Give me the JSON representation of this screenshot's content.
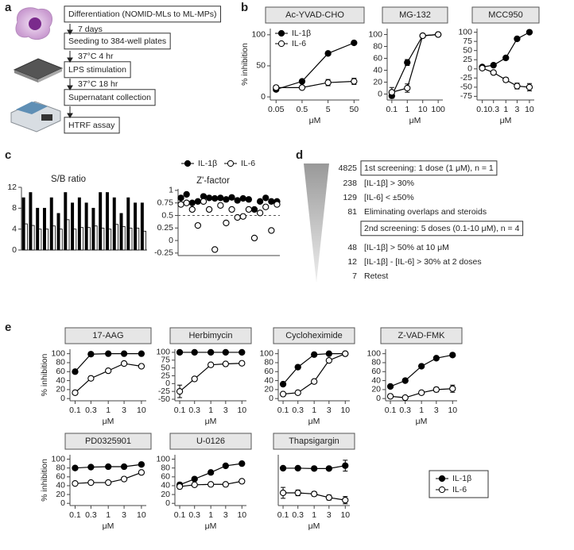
{
  "panel_labels": [
    "a",
    "b",
    "c",
    "d",
    "e"
  ],
  "workflow": {
    "steps": [
      "Differentiation (NOMID-MLs to ML-MPs)",
      "Seeding to 384-well plates",
      "LPS stimulation",
      "Supernatant collection",
      "HTRF assay"
    ],
    "transitions": [
      "7 days",
      "37°C 4 hr",
      "37°C 18 hr"
    ]
  },
  "funnel": {
    "rows": [
      {
        "count": 4825,
        "text": "1st screening: 1 dose (1 μM), n = 1",
        "boxed": true
      },
      {
        "count": 238,
        "text": "[IL-1β] > 30%"
      },
      {
        "count": 129,
        "text": "[IL-6] < ±50%"
      },
      {
        "count": 81,
        "text": "Eliminating overlaps and steroids"
      },
      {
        "text": "2nd screening: 5 doses (0.1-10 μM), n = 4",
        "boxed": true
      },
      {
        "count": 48,
        "text": "[IL-1β] > 50% at 10 μM"
      },
      {
        "count": 12,
        "text": "[IL-1β] - [IL-6] > 30% at 2 doses"
      },
      {
        "count": 7,
        "text": "Retest"
      }
    ]
  },
  "chart_data": [
    {
      "type": "line",
      "title": "Ac-YVAD-CHO",
      "title_style": "boxed",
      "xscale": "log",
      "x": [
        0.05,
        0.5,
        5,
        50
      ],
      "xlim": [
        0.03,
        80
      ],
      "xticks": [
        0.05,
        0.5,
        5,
        50
      ],
      "ylim": [
        -5,
        110
      ],
      "yticks": [
        0,
        50,
        100
      ],
      "xlabel": "μM",
      "ylabel": "% inhibition",
      "legend": "upper left",
      "series": [
        {
          "name": "IL-1β",
          "color": "#000000",
          "values": [
            12,
            25,
            70,
            87
          ],
          "errors": [
            3,
            2,
            3,
            2
          ]
        },
        {
          "name": "IL-6",
          "color": "#ffffff",
          "values": [
            15,
            15,
            23,
            25
          ],
          "errors": [
            3,
            3,
            5,
            5
          ]
        }
      ]
    },
    {
      "type": "line",
      "title": "MG-132",
      "title_style": "boxed",
      "xscale": "log",
      "x": [
        0.1,
        1,
        10,
        100
      ],
      "xlim": [
        0.05,
        200
      ],
      "xticks": [
        0.1,
        1,
        10,
        100
      ],
      "ylim": [
        -10,
        110
      ],
      "yticks": [
        0,
        20,
        40,
        60,
        80,
        100
      ],
      "xlabel": "μM",
      "series": [
        {
          "name": "IL-1β",
          "color": "#000000",
          "values": [
            -3,
            53,
            98,
            100
          ],
          "errors": [
            4,
            5,
            2,
            2
          ]
        },
        {
          "name": "IL-6",
          "color": "#ffffff",
          "values": [
            3,
            10,
            98,
            100
          ],
          "errors": [
            8,
            7,
            2,
            2
          ]
        }
      ]
    },
    {
      "type": "line",
      "title": "MCC950",
      "title_style": "boxed",
      "xscale": "log",
      "x": [
        0.1,
        0.3,
        1,
        3,
        10
      ],
      "xlim": [
        0.06,
        16
      ],
      "xticks": [
        0.1,
        0.3,
        1,
        3,
        10
      ],
      "ylim": [
        -85,
        110
      ],
      "yticks": [
        -75,
        -50,
        -25,
        0,
        25,
        50,
        75,
        100
      ],
      "xlabel": "μM",
      "series": [
        {
          "name": "IL-1β",
          "color": "#000000",
          "values": [
            5,
            10,
            30,
            82,
            100
          ],
          "errors": [
            3,
            3,
            5,
            3,
            2
          ]
        },
        {
          "name": "IL-6",
          "color": "#ffffff",
          "values": [
            2,
            -10,
            -30,
            -47,
            -50
          ],
          "errors": [
            3,
            3,
            6,
            8,
            10
          ]
        }
      ]
    },
    {
      "type": "bar",
      "title": "S/B ratio",
      "title_style": "plain",
      "legend": "top",
      "categories": [
        null,
        null,
        null,
        null,
        null,
        null,
        null,
        null,
        null,
        null,
        null,
        null,
        null,
        null,
        null,
        null,
        null,
        null
      ],
      "ylim": [
        0,
        12
      ],
      "yticks": [
        0,
        4,
        8,
        12
      ],
      "series": [
        {
          "name": "IL-1β",
          "color": "#000000",
          "values": [
            10,
            11,
            8,
            8,
            10,
            7,
            11,
            9,
            10,
            9,
            8,
            11,
            11,
            10,
            7,
            10,
            9,
            9
          ]
        },
        {
          "name": "IL-6",
          "color": "#ffffff",
          "values": [
            5,
            4.7,
            4,
            4,
            4.6,
            4,
            5.8,
            4,
            4.3,
            4.3,
            4.6,
            4.2,
            4,
            4.9,
            4.5,
            4.2,
            4.2,
            3.6
          ]
        }
      ]
    },
    {
      "type": "dot",
      "title": "Z'-factor",
      "title_style": "plain",
      "categories": [
        null,
        null,
        null,
        null,
        null,
        null,
        null,
        null,
        null,
        null,
        null,
        null,
        null,
        null,
        null,
        null,
        null,
        null
      ],
      "ylim": [
        -0.3,
        1.03
      ],
      "yticks": [
        1,
        0.75,
        0.5,
        0.25,
        0,
        -0.25
      ],
      "refline": 0.5,
      "series": [
        {
          "name": "IL-1β",
          "color": "#000000",
          "values": [
            0.85,
            0.92,
            0.75,
            0.78,
            0.88,
            0.85,
            0.84,
            0.85,
            0.82,
            0.86,
            0.8,
            0.84,
            0.82,
            0.62,
            0.78,
            0.85,
            0.78,
            0.78
          ]
        },
        {
          "name": "IL-6",
          "color": "#ffffff",
          "values": [
            0.72,
            0.75,
            0.62,
            0.3,
            0.78,
            0.62,
            -0.18,
            0.7,
            0.35,
            0.62,
            0.46,
            0.48,
            0.62,
            0.05,
            0.55,
            0.67,
            0.2,
            0.72
          ]
        }
      ]
    },
    {
      "type": "line",
      "title": "17-AAG",
      "title_style": "boxed",
      "xscale": "log",
      "x": [
        0.1,
        0.3,
        1,
        3,
        10
      ],
      "xlim": [
        0.07,
        14
      ],
      "xticks": [
        0.1,
        0.3,
        1,
        3,
        10
      ],
      "ylim": [
        -5,
        110
      ],
      "yticks": [
        0,
        20,
        40,
        60,
        80,
        100
      ],
      "xlabel": "μM",
      "ylabel": "% inhibition",
      "series": [
        {
          "name": "IL-1β",
          "color": "#000000",
          "values": [
            60,
            99,
            100,
            100,
            100
          ],
          "errors": [
            3,
            2,
            2,
            2,
            2
          ]
        },
        {
          "name": "IL-6",
          "color": "#ffffff",
          "values": [
            13,
            45,
            62,
            78,
            72
          ],
          "errors": [
            2,
            4,
            3,
            2,
            3
          ]
        }
      ]
    },
    {
      "type": "line",
      "title": "Herbimycin",
      "title_style": "boxed",
      "xscale": "log",
      "x": [
        0.1,
        0.3,
        1,
        3,
        10
      ],
      "xlim": [
        0.07,
        14
      ],
      "xticks": [
        0.1,
        0.3,
        1,
        3,
        10
      ],
      "ylim": [
        -55,
        110
      ],
      "yticks": [
        -50,
        -25,
        0,
        25,
        50,
        75,
        100
      ],
      "xlabel": "μM",
      "series": [
        {
          "name": "IL-1β",
          "color": "#000000",
          "values": [
            100,
            100,
            100,
            100,
            100
          ],
          "errors": [
            2,
            2,
            2,
            2,
            2
          ]
        },
        {
          "name": "IL-6",
          "color": "#ffffff",
          "values": [
            -25,
            15,
            60,
            63,
            65
          ],
          "errors": [
            20,
            3,
            4,
            3,
            3
          ]
        }
      ]
    },
    {
      "type": "line",
      "title": "Cycloheximide",
      "title_style": "boxed",
      "xscale": "log",
      "x": [
        0.1,
        0.3,
        1,
        3,
        10
      ],
      "xlim": [
        0.07,
        14
      ],
      "xticks": [
        0.1,
        0.3,
        1,
        3,
        10
      ],
      "ylim": [
        -5,
        110
      ],
      "yticks": [
        0,
        20,
        40,
        60,
        80,
        100
      ],
      "xlabel": "μM",
      "series": [
        {
          "name": "IL-1β",
          "color": "#000000",
          "values": [
            32,
            70,
            98,
            100,
            100
          ],
          "errors": [
            4,
            3,
            2,
            2,
            2
          ]
        },
        {
          "name": "IL-6",
          "color": "#ffffff",
          "values": [
            10,
            13,
            38,
            85,
            100
          ],
          "errors": [
            2,
            2,
            3,
            2,
            3
          ]
        }
      ]
    },
    {
      "type": "line",
      "title": "Z-VAD-FMK",
      "title_style": "boxed",
      "xscale": "log",
      "x": [
        0.1,
        0.3,
        1,
        3,
        10
      ],
      "xlim": [
        0.07,
        14
      ],
      "xticks": [
        0.1,
        0.3,
        1,
        3,
        10
      ],
      "ylim": [
        -5,
        110
      ],
      "yticks": [
        0,
        20,
        40,
        60,
        80,
        100
      ],
      "xlabel": "μM",
      "series": [
        {
          "name": "IL-1β",
          "color": "#000000",
          "values": [
            27,
            40,
            72,
            90,
            97
          ],
          "errors": [
            3,
            3,
            3,
            2,
            2
          ]
        },
        {
          "name": "IL-6",
          "color": "#ffffff",
          "values": [
            5,
            2,
            13,
            20,
            22
          ],
          "errors": [
            4,
            3,
            3,
            5,
            8
          ]
        }
      ]
    },
    {
      "type": "line",
      "title": "PD0325901",
      "title_style": "boxed",
      "xscale": "log",
      "x": [
        0.1,
        0.3,
        1,
        3,
        10
      ],
      "xlim": [
        0.07,
        14
      ],
      "xticks": [
        0.1,
        0.3,
        1,
        3,
        10
      ],
      "ylim": [
        -5,
        110
      ],
      "yticks": [
        0,
        20,
        40,
        60,
        80,
        100
      ],
      "xlabel": "μM",
      "ylabel": "% inhibition",
      "series": [
        {
          "name": "IL-1β",
          "color": "#000000",
          "values": [
            80,
            82,
            83,
            83,
            88
          ],
          "errors": [
            2,
            2,
            2,
            2,
            3
          ]
        },
        {
          "name": "IL-6",
          "color": "#ffffff",
          "values": [
            45,
            47,
            47,
            55,
            70
          ],
          "errors": [
            2,
            2,
            2,
            4,
            3
          ]
        }
      ]
    },
    {
      "type": "line",
      "title": "U-0126",
      "title_style": "boxed",
      "xscale": "log",
      "x": [
        0.1,
        0.3,
        1,
        3,
        10
      ],
      "xlim": [
        0.07,
        14
      ],
      "xticks": [
        0.1,
        0.3,
        1,
        3,
        10
      ],
      "ylim": [
        -5,
        110
      ],
      "yticks": [
        0,
        20,
        40,
        60,
        80,
        100
      ],
      "xlabel": "μM",
      "series": [
        {
          "name": "IL-1β",
          "color": "#000000",
          "values": [
            42,
            55,
            70,
            85,
            90
          ],
          "errors": [
            5,
            2,
            2,
            2,
            2
          ]
        },
        {
          "name": "IL-6",
          "color": "#ffffff",
          "values": [
            38,
            42,
            43,
            43,
            50
          ],
          "errors": [
            5,
            3,
            3,
            4,
            3
          ]
        }
      ]
    },
    {
      "type": "line",
      "title": "Thapsigargin",
      "title_style": "boxed",
      "xscale": "log",
      "x": [
        0.1,
        0.3,
        1,
        3,
        10
      ],
      "xlim": [
        0.07,
        14
      ],
      "xticks": [
        0.1,
        0.3,
        1,
        3,
        10
      ],
      "ylim": [
        -35,
        105
      ],
      "yticks": [],
      "xlabel": "μM",
      "legend": "outside right",
      "series": [
        {
          "name": "IL-1β",
          "color": "#000000",
          "values": [
            68,
            68,
            67,
            67,
            75
          ],
          "errors": [
            3,
            4,
            3,
            4,
            15
          ]
        },
        {
          "name": "IL-6",
          "color": "#ffffff",
          "values": [
            0,
            0,
            -3,
            -13,
            -20
          ],
          "errors": [
            15,
            8,
            6,
            7,
            10
          ]
        }
      ]
    }
  ]
}
